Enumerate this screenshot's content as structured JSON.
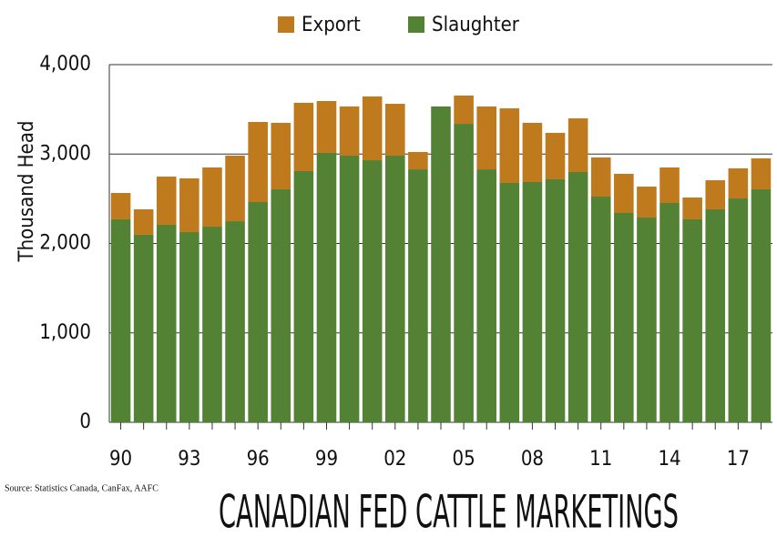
{
  "chart_data": {
    "type": "stacked_bar",
    "title": "CANADIAN FED CATTLE MARKETINGS",
    "source": "Source: Statistics Canada, CanFax, AAFC",
    "y_label": "Thousand Head",
    "categories": [
      "90",
      null,
      null,
      "93",
      null,
      null,
      "96",
      null,
      null,
      "99",
      null,
      null,
      "02",
      null,
      null,
      "05",
      null,
      null,
      "08",
      null,
      null,
      "11",
      null,
      null,
      "14",
      null,
      null,
      "17",
      null
    ],
    "series": [
      {
        "name": "Slaughter",
        "color": "#548235",
        "values": [
          2270,
          2097,
          2209,
          2127,
          2188,
          2249,
          2463,
          2606,
          2809,
          3013,
          2982,
          2931,
          2982,
          2829,
          3532,
          3338,
          2829,
          2677,
          2687,
          2718,
          2799,
          2524,
          2341,
          2290,
          2453,
          2270,
          2382,
          2504,
          2606
        ]
      },
      {
        "name": "Export",
        "color": "#c07a1e",
        "values": [
          295,
          285,
          539,
          601,
          662,
          733,
          896,
          743,
          764,
          580,
          550,
          713,
          580,
          194,
          0,
          316,
          703,
          834,
          662,
          519,
          600,
          438,
          438,
          346,
          397,
          244,
          325,
          336,
          346
        ]
      }
    ],
    "ylim": [
      0,
      4000
    ],
    "yticks": [
      0,
      {
        "value": 1000,
        "label": "1,000"
      },
      {
        "value": 2000,
        "label": "2,000"
      },
      {
        "value": 3000,
        "label": "3,000"
      },
      {
        "value": 4000,
        "label": "4,000"
      }
    ],
    "grid": true
  }
}
